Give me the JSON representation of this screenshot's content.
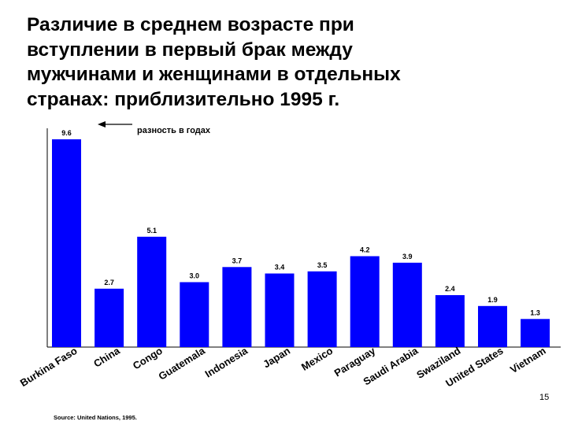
{
  "slide": {
    "title_lines": [
      "Различие в среднем возрасте при",
      "вступлении в первый брак между",
      "мужчинами и женщинами в отдельных",
      "странах: приблизительно 1995 г."
    ],
    "annotation": "разность в годах",
    "source": "Source: United Nations, 1995.",
    "page_number": "15"
  },
  "chart_data": {
    "type": "bar",
    "title": "",
    "xlabel": "",
    "ylabel": "",
    "ylim": [
      0,
      10
    ],
    "grid": false,
    "bar_color": "#0000ff",
    "categories": [
      "Burkina Faso",
      "China",
      "Congo",
      "Guatemala",
      "Indonesia",
      "Japan",
      "Mexico",
      "Paraguay",
      "Saudi Arabia",
      "Swaziland",
      "United States",
      "Vietnam"
    ],
    "values": [
      9.6,
      2.7,
      5.1,
      3.0,
      3.7,
      3.4,
      3.5,
      4.2,
      3.9,
      2.4,
      1.9,
      1.3
    ],
    "data_labels": [
      "9.6",
      "2.7",
      "5.1",
      "3.0",
      "3.7",
      "3.4",
      "3.5",
      "4.2",
      "3.9",
      "2.4",
      "1.9",
      "1.3"
    ]
  }
}
